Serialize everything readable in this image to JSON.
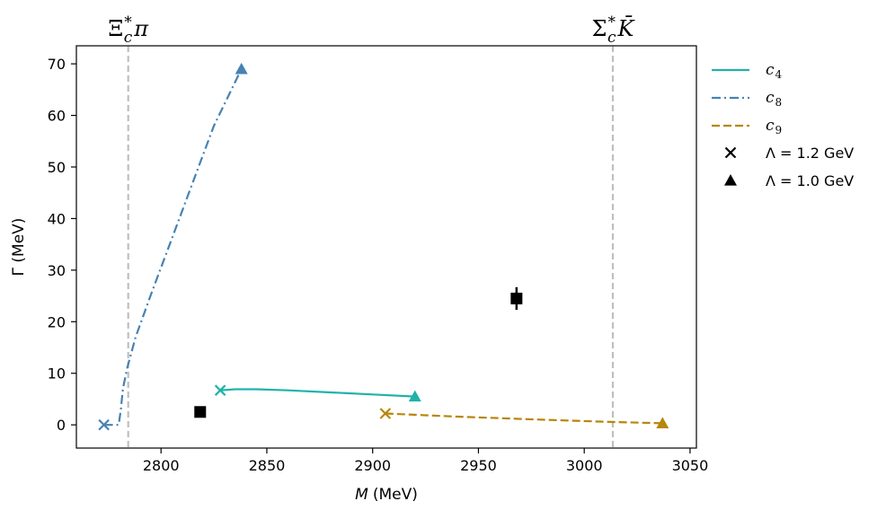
{
  "chart_data": {
    "type": "line",
    "xlabel": "M (MeV)",
    "xlabel_var": "M",
    "xlabel_unit": "(MeV)",
    "ylabel": "Γ (MeV)",
    "xlim": [
      2760,
      3053
    ],
    "ylim": [
      -4.5,
      73.5
    ],
    "xticks": [
      2800,
      2850,
      2900,
      2950,
      3000,
      3050
    ],
    "yticks": [
      0,
      10,
      20,
      30,
      40,
      50,
      60,
      70
    ],
    "thresholds": [
      {
        "x": 2784.5,
        "label_base": "Ξ",
        "label_sub": "c",
        "label_sup": "*",
        "label_tail": "π"
      },
      {
        "x": 3013.5,
        "label_base": "Σ",
        "label_sub": "c",
        "label_sup": "*",
        "label_tail": "K̄"
      }
    ],
    "series": [
      {
        "name": "c4",
        "name_base": "c",
        "name_sub": "4",
        "color": "#20b2aa",
        "dash": "solid",
        "x": [
          2828,
          2835,
          2845,
          2860,
          2880,
          2900,
          2920
        ],
        "y": [
          6.7,
          6.9,
          6.9,
          6.7,
          6.3,
          5.9,
          5.5
        ],
        "start_marker": "x",
        "end_marker": "triangle"
      },
      {
        "name": "c8",
        "name_base": "c",
        "name_sub": "8",
        "color": "#4682b4",
        "dash": "dashdot",
        "x": [
          2773,
          2780,
          2781,
          2782,
          2784,
          2788,
          2795,
          2805,
          2815,
          2825,
          2838
        ],
        "y": [
          0,
          0,
          3,
          7,
          11,
          17,
          25,
          36,
          47,
          58,
          69
        ],
        "start_marker": "x",
        "end_marker": "triangle"
      },
      {
        "name": "c9",
        "name_base": "c",
        "name_sub": "9",
        "color": "#b8860b",
        "dash": "dashed",
        "x": [
          2906,
          2940,
          2980,
          3010,
          3037
        ],
        "y": [
          2.2,
          1.6,
          1.0,
          0.6,
          0.3
        ],
        "start_marker": "x",
        "end_marker": "triangle"
      }
    ],
    "experiment": [
      {
        "x": 2818.5,
        "y": 2.5,
        "yerr": 0
      },
      {
        "x": 2968,
        "y": 24.5,
        "yerr": 2.2
      }
    ],
    "legend": {
      "placement": "outside-right",
      "marker_entries": [
        {
          "marker": "x",
          "label": "Λ = 1.2 GeV"
        },
        {
          "marker": "triangle",
          "label": "Λ = 1.0 GeV"
        }
      ]
    },
    "grid": false,
    "threshold_color": "#bfbfbf"
  }
}
